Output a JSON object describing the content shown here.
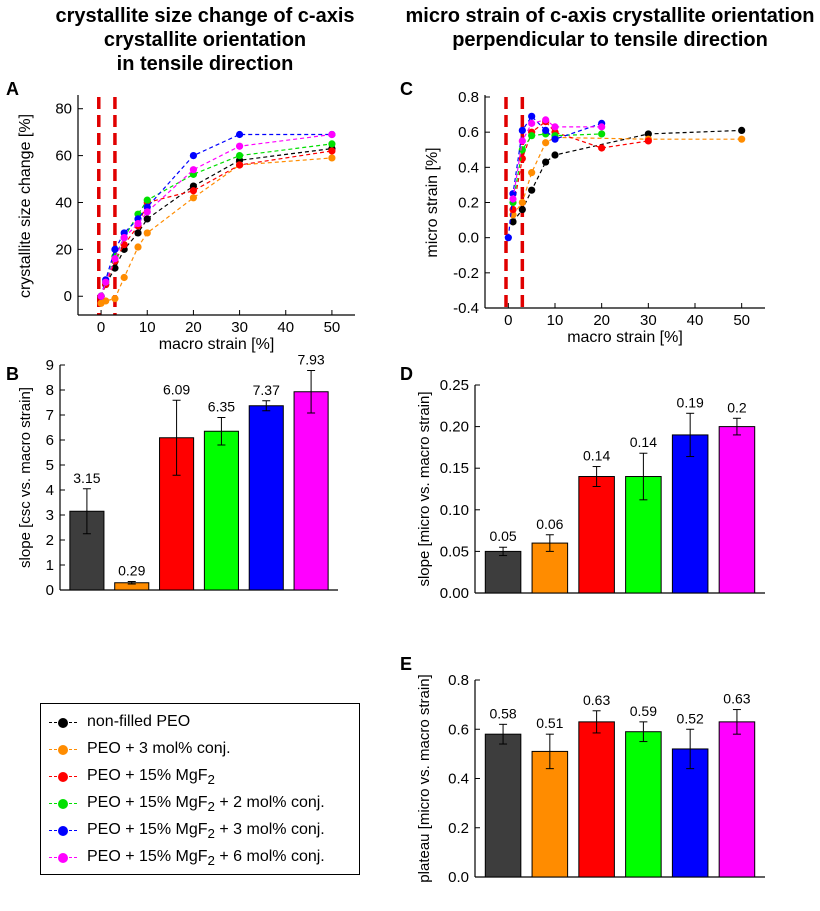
{
  "titles": {
    "left": [
      "crystallite size change of c-axis",
      "crystallite orientation",
      "in tensile direction"
    ],
    "right": [
      "micro strain of c-axis crystallite orientation",
      "perpendicular to tensile direction"
    ]
  },
  "series_names": [
    "non-filled PEO",
    "PEO + 3 mol% conj.",
    "PEO + 15% MgF2",
    "PEO + 15% MgF2 + 2 mol% conj.",
    "PEO + 15% MgF2 + 3 mol% conj.",
    "PEO + 15% MgF2 + 6 mol% conj."
  ],
  "series_colors": [
    "#000000",
    "#ff8c00",
    "#ff0000",
    "#00e000",
    "#0000ff",
    "#ff00ff"
  ],
  "bar_colors": [
    "#3d3d3d",
    "#ff8c00",
    "#ff0000",
    "#00ff00",
    "#0000ff",
    "#ff00ff"
  ],
  "legend": {
    "items": [
      {
        "prefix": "non-filled PEO",
        "sub": "",
        "suffix": ""
      },
      {
        "prefix": "PEO + 3 mol% conj.",
        "sub": "",
        "suffix": ""
      },
      {
        "prefix": "PEO + 15% MgF",
        "sub": "2",
        "suffix": ""
      },
      {
        "prefix": "PEO + 15% MgF",
        "sub": "2",
        "suffix": " + 2 mol% conj."
      },
      {
        "prefix": "PEO + 15% MgF",
        "sub": "2",
        "suffix": " + 3 mol% conj."
      },
      {
        "prefix": "PEO + 15% MgF",
        "sub": "2",
        "suffix": " + 6 mol% conj."
      }
    ]
  },
  "chart_data": [
    {
      "panel": "A",
      "type": "line",
      "xlabel": "macro strain [%]",
      "ylabel": "crystallite size change [%]",
      "xlim": [
        -5,
        55
      ],
      "ylim": [
        -8,
        85
      ],
      "xticks": [
        0,
        10,
        20,
        30,
        40,
        50
      ],
      "yticks": [
        0,
        20,
        40,
        60,
        80
      ],
      "vlines": [
        -0.5,
        3
      ],
      "series": [
        {
          "name": "non-filled PEO",
          "x": [
            0,
            1,
            3,
            5,
            8,
            10,
            20,
            30,
            50
          ],
          "y": [
            0,
            5,
            12,
            20,
            27,
            33,
            47,
            58,
            63
          ]
        },
        {
          "name": "PEO + 3 mol% conj.",
          "x": [
            0,
            1,
            3,
            5,
            8,
            10,
            20,
            30,
            50
          ],
          "y": [
            -3,
            -2,
            -1,
            8,
            21,
            27,
            42,
            56,
            59
          ]
        },
        {
          "name": "PEO + 15% MgF2",
          "x": [
            0,
            1,
            3,
            5,
            8,
            10,
            20,
            30,
            50
          ],
          "y": [
            0,
            5,
            15,
            22,
            30,
            40,
            45,
            56,
            62
          ]
        },
        {
          "name": "PEO + 15% MgF2 + 2 mol% conj.",
          "x": [
            0,
            1,
            3,
            5,
            8,
            10,
            20,
            30,
            50
          ],
          "y": [
            0,
            6,
            17,
            25,
            35,
            41,
            52,
            60,
            65
          ]
        },
        {
          "name": "PEO + 15% MgF2 + 3 mol% conj.",
          "x": [
            0,
            1,
            3,
            5,
            8,
            10,
            20,
            30,
            50
          ],
          "y": [
            0,
            7,
            20,
            27,
            33,
            38,
            60,
            69,
            69
          ]
        },
        {
          "name": "PEO + 15% MgF2 + 6 mol% conj.",
          "x": [
            0,
            1,
            3,
            5,
            8,
            10,
            20,
            30,
            50
          ],
          "y": [
            0,
            6,
            16,
            25,
            31,
            36,
            54,
            64,
            69
          ]
        }
      ]
    },
    {
      "panel": "B",
      "type": "bar",
      "ylabel": "slope [csc vs. macro strain]",
      "ylim": [
        0,
        9
      ],
      "yticks": [
        0,
        1,
        2,
        3,
        4,
        5,
        6,
        7,
        8,
        9
      ],
      "categories": [
        "non-filled PEO",
        "PEO + 3 mol% conj.",
        "PEO + 15% MgF2",
        "PEO + 15% MgF2 + 2 mol% conj.",
        "PEO + 15% MgF2 + 3 mol% conj.",
        "PEO + 15% MgF2 + 6 mol% conj."
      ],
      "values": [
        3.15,
        0.29,
        6.09,
        6.35,
        7.37,
        7.93
      ],
      "errors": [
        0.9,
        0.05,
        1.5,
        0.55,
        0.2,
        0.85
      ],
      "labels": [
        "3.15",
        "0.29",
        "6.09",
        "6.35",
        "7.37",
        "7.93"
      ]
    },
    {
      "panel": "C",
      "type": "line",
      "xlabel": "macro strain [%]",
      "ylabel": "micro strain [%]",
      "xlim": [
        -5,
        55
      ],
      "ylim": [
        -0.4,
        0.8
      ],
      "xticks": [
        0,
        10,
        20,
        30,
        40,
        50
      ],
      "yticks": [
        -0.4,
        -0.2,
        0.0,
        0.2,
        0.4,
        0.6,
        0.8
      ],
      "yticklabels": [
        "-0.4",
        "-0.2",
        "0.0",
        "0.2",
        "0.4",
        "0.6",
        "0.8"
      ],
      "vlines": [
        -0.5,
        3
      ],
      "series": [
        {
          "name": "non-filled PEO",
          "x": [
            1,
            3,
            5,
            8,
            10,
            30,
            50
          ],
          "y": [
            0.09,
            0.16,
            0.27,
            0.43,
            0.47,
            0.59,
            0.61
          ]
        },
        {
          "name": "PEO + 3 mol% conj.",
          "x": [
            1,
            3,
            5,
            8,
            10,
            30,
            50
          ],
          "y": [
            0.13,
            0.2,
            0.37,
            0.54,
            0.57,
            0.56,
            0.56
          ]
        },
        {
          "name": "PEO + 15% MgF2",
          "x": [
            1,
            3,
            5,
            8,
            10,
            20,
            30
          ],
          "y": [
            0.16,
            0.45,
            0.6,
            0.66,
            0.6,
            0.51,
            0.55
          ]
        },
        {
          "name": "PEO + 15% MgF2 + 2 mol% conj.",
          "x": [
            1,
            3,
            5,
            8,
            10,
            20
          ],
          "y": [
            0.2,
            0.5,
            0.58,
            0.59,
            0.58,
            0.59
          ]
        },
        {
          "name": "PEO + 15% MgF2 + 3 mol% conj.",
          "x": [
            0,
            1,
            3,
            5,
            8,
            10,
            20
          ],
          "y": [
            0.0,
            0.25,
            0.61,
            0.69,
            0.61,
            0.56,
            0.65
          ]
        },
        {
          "name": "PEO + 15% MgF2 + 6 mol% conj.",
          "x": [
            1,
            3,
            5,
            8,
            10,
            20
          ],
          "y": [
            0.22,
            0.55,
            0.65,
            0.67,
            0.63,
            0.63
          ]
        }
      ]
    },
    {
      "panel": "D",
      "type": "bar",
      "ylabel": "slope [micro vs. macro strain]",
      "ylim": [
        0,
        0.25
      ],
      "yticks": [
        0,
        0.05,
        0.1,
        0.15,
        0.2,
        0.25
      ],
      "yticklabels": [
        "0.00",
        "0.05",
        "0.10",
        "0.15",
        "0.20",
        "0.25"
      ],
      "categories": [
        "non-filled PEO",
        "PEO + 3 mol% conj.",
        "PEO + 15% MgF2",
        "PEO + 15% MgF2 + 2 mol% conj.",
        "PEO + 15% MgF2 + 3 mol% conj.",
        "PEO + 15% MgF2 + 6 mol% conj."
      ],
      "values": [
        0.05,
        0.06,
        0.14,
        0.14,
        0.19,
        0.2
      ],
      "errors": [
        0.005,
        0.01,
        0.012,
        0.028,
        0.026,
        0.01
      ],
      "labels": [
        "0.05",
        "0.06",
        "0.14",
        "0.14",
        "0.19",
        "0.2"
      ]
    },
    {
      "panel": "E",
      "type": "bar",
      "ylabel": "plateau [micro vs. macro strain]",
      "ylim": [
        0,
        0.8
      ],
      "yticks": [
        0,
        0.2,
        0.4,
        0.6,
        0.8
      ],
      "yticklabels": [
        "0.0",
        "0.2",
        "0.4",
        "0.6",
        "0.8"
      ],
      "categories": [
        "non-filled PEO",
        "PEO + 3 mol% conj.",
        "PEO + 15% MgF2",
        "PEO + 15% MgF2 + 2 mol% conj.",
        "PEO + 15% MgF2 + 3 mol% conj.",
        "PEO + 15% MgF2 + 6 mol% conj."
      ],
      "values": [
        0.58,
        0.51,
        0.63,
        0.59,
        0.52,
        0.63
      ],
      "errors": [
        0.04,
        0.07,
        0.045,
        0.04,
        0.08,
        0.05
      ],
      "labels": [
        "0.58",
        "0.51",
        "0.63",
        "0.59",
        "0.52",
        "0.63"
      ]
    }
  ]
}
